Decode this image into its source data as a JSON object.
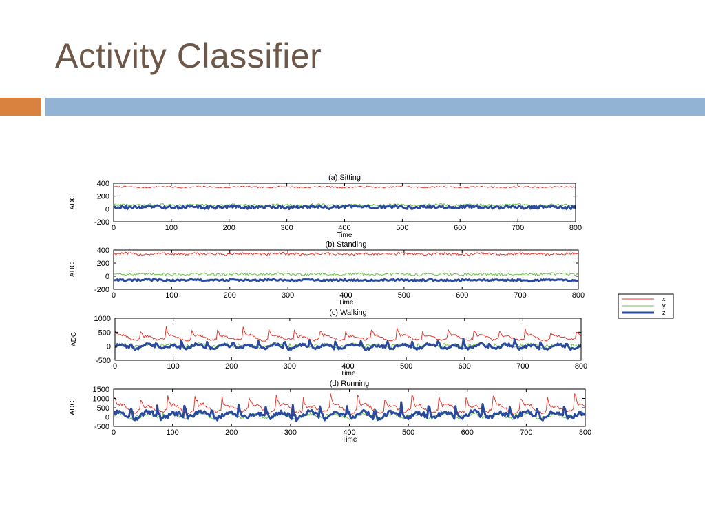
{
  "slide": {
    "title": "Activity Classifier"
  },
  "colors": {
    "x": "#e03a2f",
    "y": "#6cc04a",
    "z": "#2a4a9e",
    "title": "#6d5748",
    "accent_orange": "#d9813e",
    "accent_blue": "#93b3d4"
  },
  "legend": {
    "entries": [
      "x",
      "y",
      "z"
    ]
  },
  "chart_data": [
    {
      "type": "line",
      "title": "(a) Sitting",
      "xlabel": "Time",
      "ylabel": "ADC",
      "xlim": [
        0,
        800
      ],
      "ylim": [
        -200,
        400
      ],
      "xticks": [
        0,
        100,
        200,
        300,
        400,
        500,
        600,
        700,
        800
      ],
      "yticks": [
        -200,
        0,
        200,
        400
      ],
      "series": [
        {
          "name": "x",
          "mean": 340,
          "amp": 18,
          "noise": 10,
          "periodic": false,
          "peak": 0
        },
        {
          "name": "y",
          "mean": 60,
          "amp": 22,
          "noise": 20,
          "periodic": false,
          "peak": 0
        },
        {
          "name": "z",
          "mean": 30,
          "amp": 25,
          "noise": 25,
          "periodic": false,
          "peak": 0
        }
      ]
    },
    {
      "type": "line",
      "title": "(b) Standing",
      "xlabel": "Time",
      "ylabel": "ADC",
      "xlim": [
        0,
        800
      ],
      "ylim": [
        -200,
        400
      ],
      "xticks": [
        0,
        100,
        200,
        300,
        400,
        500,
        600,
        700,
        800
      ],
      "yticks": [
        -200,
        0,
        200,
        400
      ],
      "series": [
        {
          "name": "x",
          "mean": 340,
          "amp": 20,
          "noise": 20,
          "periodic": false,
          "peak": 0
        },
        {
          "name": "y",
          "mean": 30,
          "amp": 20,
          "noise": 20,
          "periodic": false,
          "peak": 0
        },
        {
          "name": "z",
          "mean": -60,
          "amp": 12,
          "noise": 14,
          "periodic": false,
          "peak": 0
        }
      ]
    },
    {
      "type": "line",
      "title": "(c) Walking",
      "xlabel": "Time",
      "ylabel": "ADC",
      "xlim": [
        0,
        800
      ],
      "ylim": [
        -500,
        1000
      ],
      "xticks": [
        0,
        100,
        200,
        300,
        400,
        500,
        600,
        700,
        800
      ],
      "yticks": [
        -500,
        0,
        500,
        1000
      ],
      "series": [
        {
          "name": "x",
          "mean": 300,
          "amp": 80,
          "noise": 40,
          "periodic": true,
          "peak": 300
        },
        {
          "name": "y",
          "mean": 20,
          "amp": 60,
          "noise": 40,
          "periodic": true,
          "peak": 120
        },
        {
          "name": "z",
          "mean": -20,
          "amp": 70,
          "noise": 50,
          "periodic": true,
          "peak": 250
        }
      ]
    },
    {
      "type": "line",
      "title": "(d) Running",
      "xlabel": "Time",
      "ylabel": "ADC",
      "xlim": [
        0,
        800
      ],
      "ylim": [
        -500,
        1500
      ],
      "xticks": [
        0,
        100,
        200,
        300,
        400,
        500,
        600,
        700,
        800
      ],
      "yticks": [
        -500,
        0,
        500,
        1000,
        1500
      ],
      "series": [
        {
          "name": "x",
          "mean": 450,
          "amp": 200,
          "noise": 80,
          "periodic": true,
          "peak": 700
        },
        {
          "name": "y",
          "mean": 50,
          "amp": 120,
          "noise": 80,
          "periodic": true,
          "peak": 200
        },
        {
          "name": "z",
          "mean": 100,
          "amp": 150,
          "noise": 120,
          "periodic": true,
          "peak": 600
        }
      ]
    }
  ]
}
